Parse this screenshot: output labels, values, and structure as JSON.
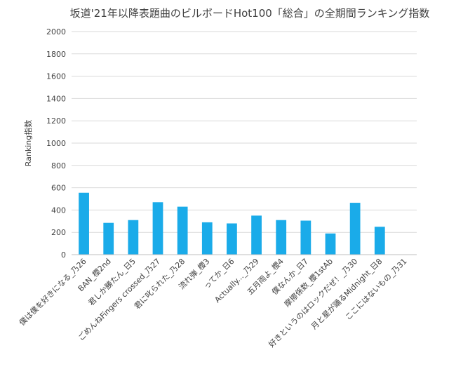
{
  "chart_data": {
    "type": "bar",
    "title": "坂道'21年以降表題曲のビルボードHot100「総合」の全期間ランキング指数",
    "xlabel": "",
    "ylabel": "Ranking指数",
    "ylim": [
      0,
      2000
    ],
    "yticks": [
      0,
      200,
      400,
      600,
      800,
      1000,
      1200,
      1400,
      1600,
      1800,
      2000
    ],
    "grid": true,
    "legend": "none",
    "bar_color": "#1aabe9",
    "categories": [
      "僕は僕を好きになる_乃26",
      "BAN_櫻2nd",
      "君しか勝たん_日5",
      "ごめんねFingers crossed_乃27",
      "君に叱られた_乃28",
      "流れ弾_櫻3",
      "ってか_日6",
      "Actually..._乃29",
      "五月雨よ_櫻4",
      "僕なんか_日7",
      "摩擦係数_櫻1stAb",
      "好きというのはロックだぜ！_乃30",
      "月と星が踊るMidnight_日8",
      "ここにはないもの_乃31"
    ],
    "values": [
      555,
      285,
      310,
      470,
      430,
      290,
      280,
      350,
      310,
      305,
      190,
      465,
      250,
      0
    ]
  }
}
